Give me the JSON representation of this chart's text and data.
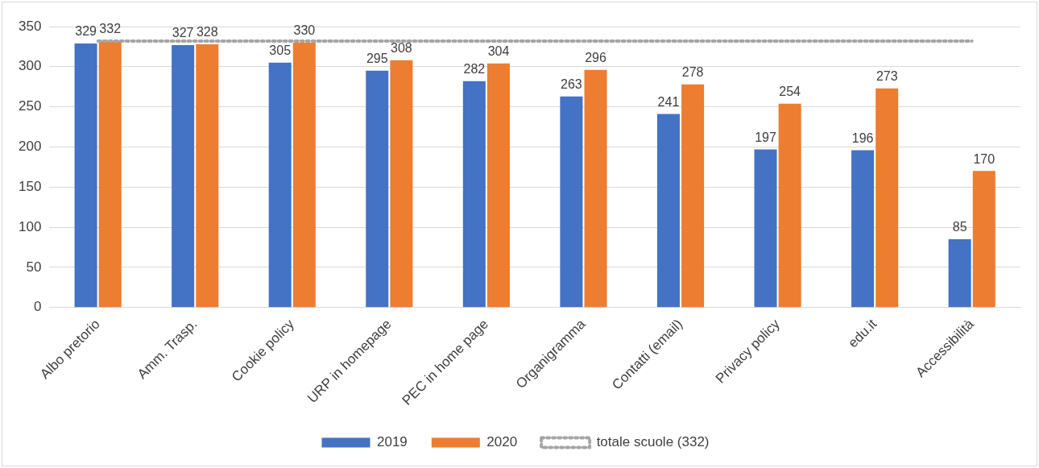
{
  "chart_data": {
    "type": "bar",
    "categories": [
      "Albo pretorio",
      "Amm. Trasp.",
      "Cookie policy",
      "URP in homepage",
      "PEC in home page",
      "Organigramma",
      "Contatti (email)",
      "Privacy policy",
      "edu.it",
      "Accessibilità"
    ],
    "series": [
      {
        "name": "2019",
        "color": "#4472c4",
        "values": [
          329,
          327,
          305,
          295,
          282,
          263,
          241,
          197,
          196,
          85
        ],
        "value_labels": [
          "329",
          "327",
          "305",
          "295",
          "282",
          "263",
          "241",
          "197",
          "196",
          "85"
        ]
      },
      {
        "name": "2020",
        "color": "#ed7d31",
        "values": [
          332,
          328,
          330,
          308,
          304,
          296,
          278,
          254,
          273,
          170
        ],
        "value_labels": [
          "332",
          "328",
          "330",
          "308",
          "304",
          "296",
          "278",
          "254",
          "273",
          "170"
        ]
      },
      {
        "name": "totale scuole (332)",
        "type": "line",
        "color": "#a5a5a5",
        "line_style": "dotted",
        "marker": "none",
        "values": [
          332,
          332,
          332,
          332,
          332,
          332,
          332,
          332,
          332,
          332
        ]
      }
    ],
    "ylim": [
      0,
      350
    ],
    "yticks": [
      0,
      50,
      100,
      150,
      200,
      250,
      300,
      350
    ],
    "grid": "y",
    "legend": "bottom"
  }
}
